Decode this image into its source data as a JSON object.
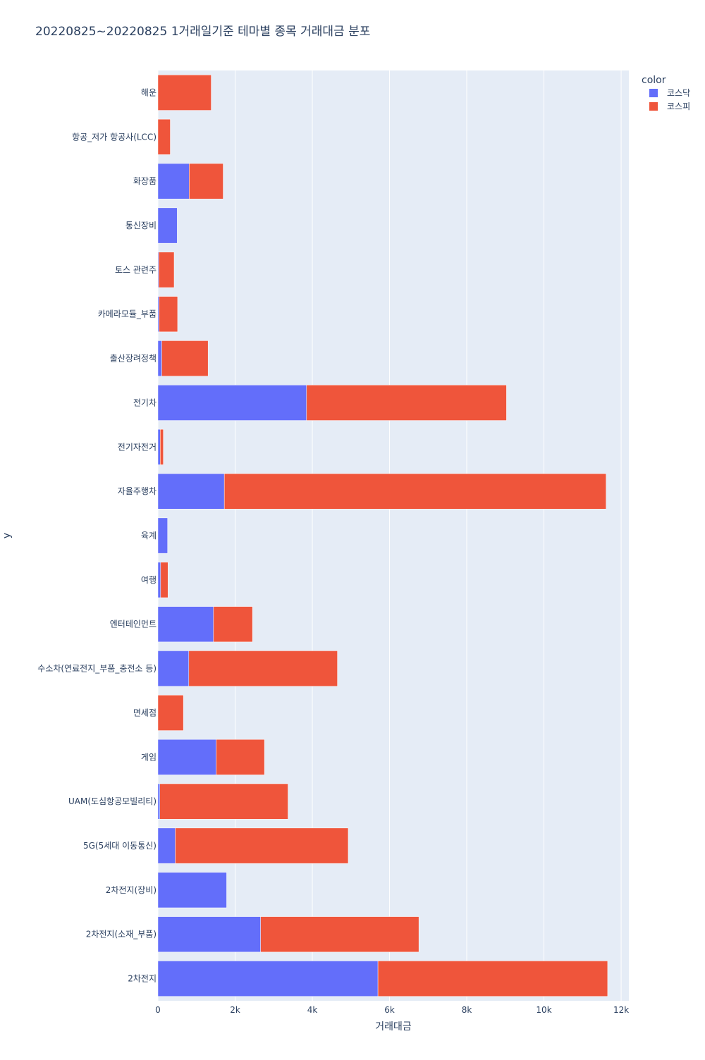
{
  "chart_data": {
    "type": "bar",
    "orientation": "horizontal",
    "barmode": "stack",
    "title": "20220825~20220825 1거래일기준 테마별 종목 거래대금 분포",
    "xlabel": "거래대금",
    "ylabel": "y",
    "xlim": [
      0,
      12200
    ],
    "x_ticks": [
      0,
      2000,
      4000,
      6000,
      8000,
      10000,
      12000
    ],
    "x_tick_labels": [
      "0",
      "2k",
      "4k",
      "6k",
      "8k",
      "10k",
      "12k"
    ],
    "grid": true,
    "legend": {
      "title": "color",
      "position": "top-right"
    },
    "categories": [
      "2차전지",
      "2차전지(소재_부품)",
      "2차전지(장비)",
      "5G(5세대 이동통신)",
      "UAM(도심항공모빌리티)",
      "게임",
      "면세점",
      "수소차(연료전지_부품_충전소 등)",
      "엔터테인먼트",
      "여행",
      "육계",
      "자율주행차",
      "전기자전거",
      "전기차",
      "출산장려정책",
      "카메라모듈_부품",
      "토스 관련주",
      "통신장비",
      "화장품",
      "항공_저가 항공사(LCC)",
      "해운"
    ],
    "series": [
      {
        "name": "코스닥",
        "color": "#636efa",
        "values": [
          5700,
          2660,
          1780,
          450,
          50,
          1510,
          0,
          800,
          1440,
          70,
          250,
          1720,
          60,
          3850,
          100,
          30,
          20,
          500,
          810,
          0,
          0
        ]
      },
      {
        "name": "코스피",
        "color": "#ef553b",
        "values": [
          5950,
          4100,
          0,
          4480,
          3320,
          1250,
          660,
          3850,
          1010,
          190,
          0,
          9890,
          80,
          5180,
          1200,
          480,
          400,
          0,
          880,
          320,
          1380
        ]
      }
    ]
  }
}
